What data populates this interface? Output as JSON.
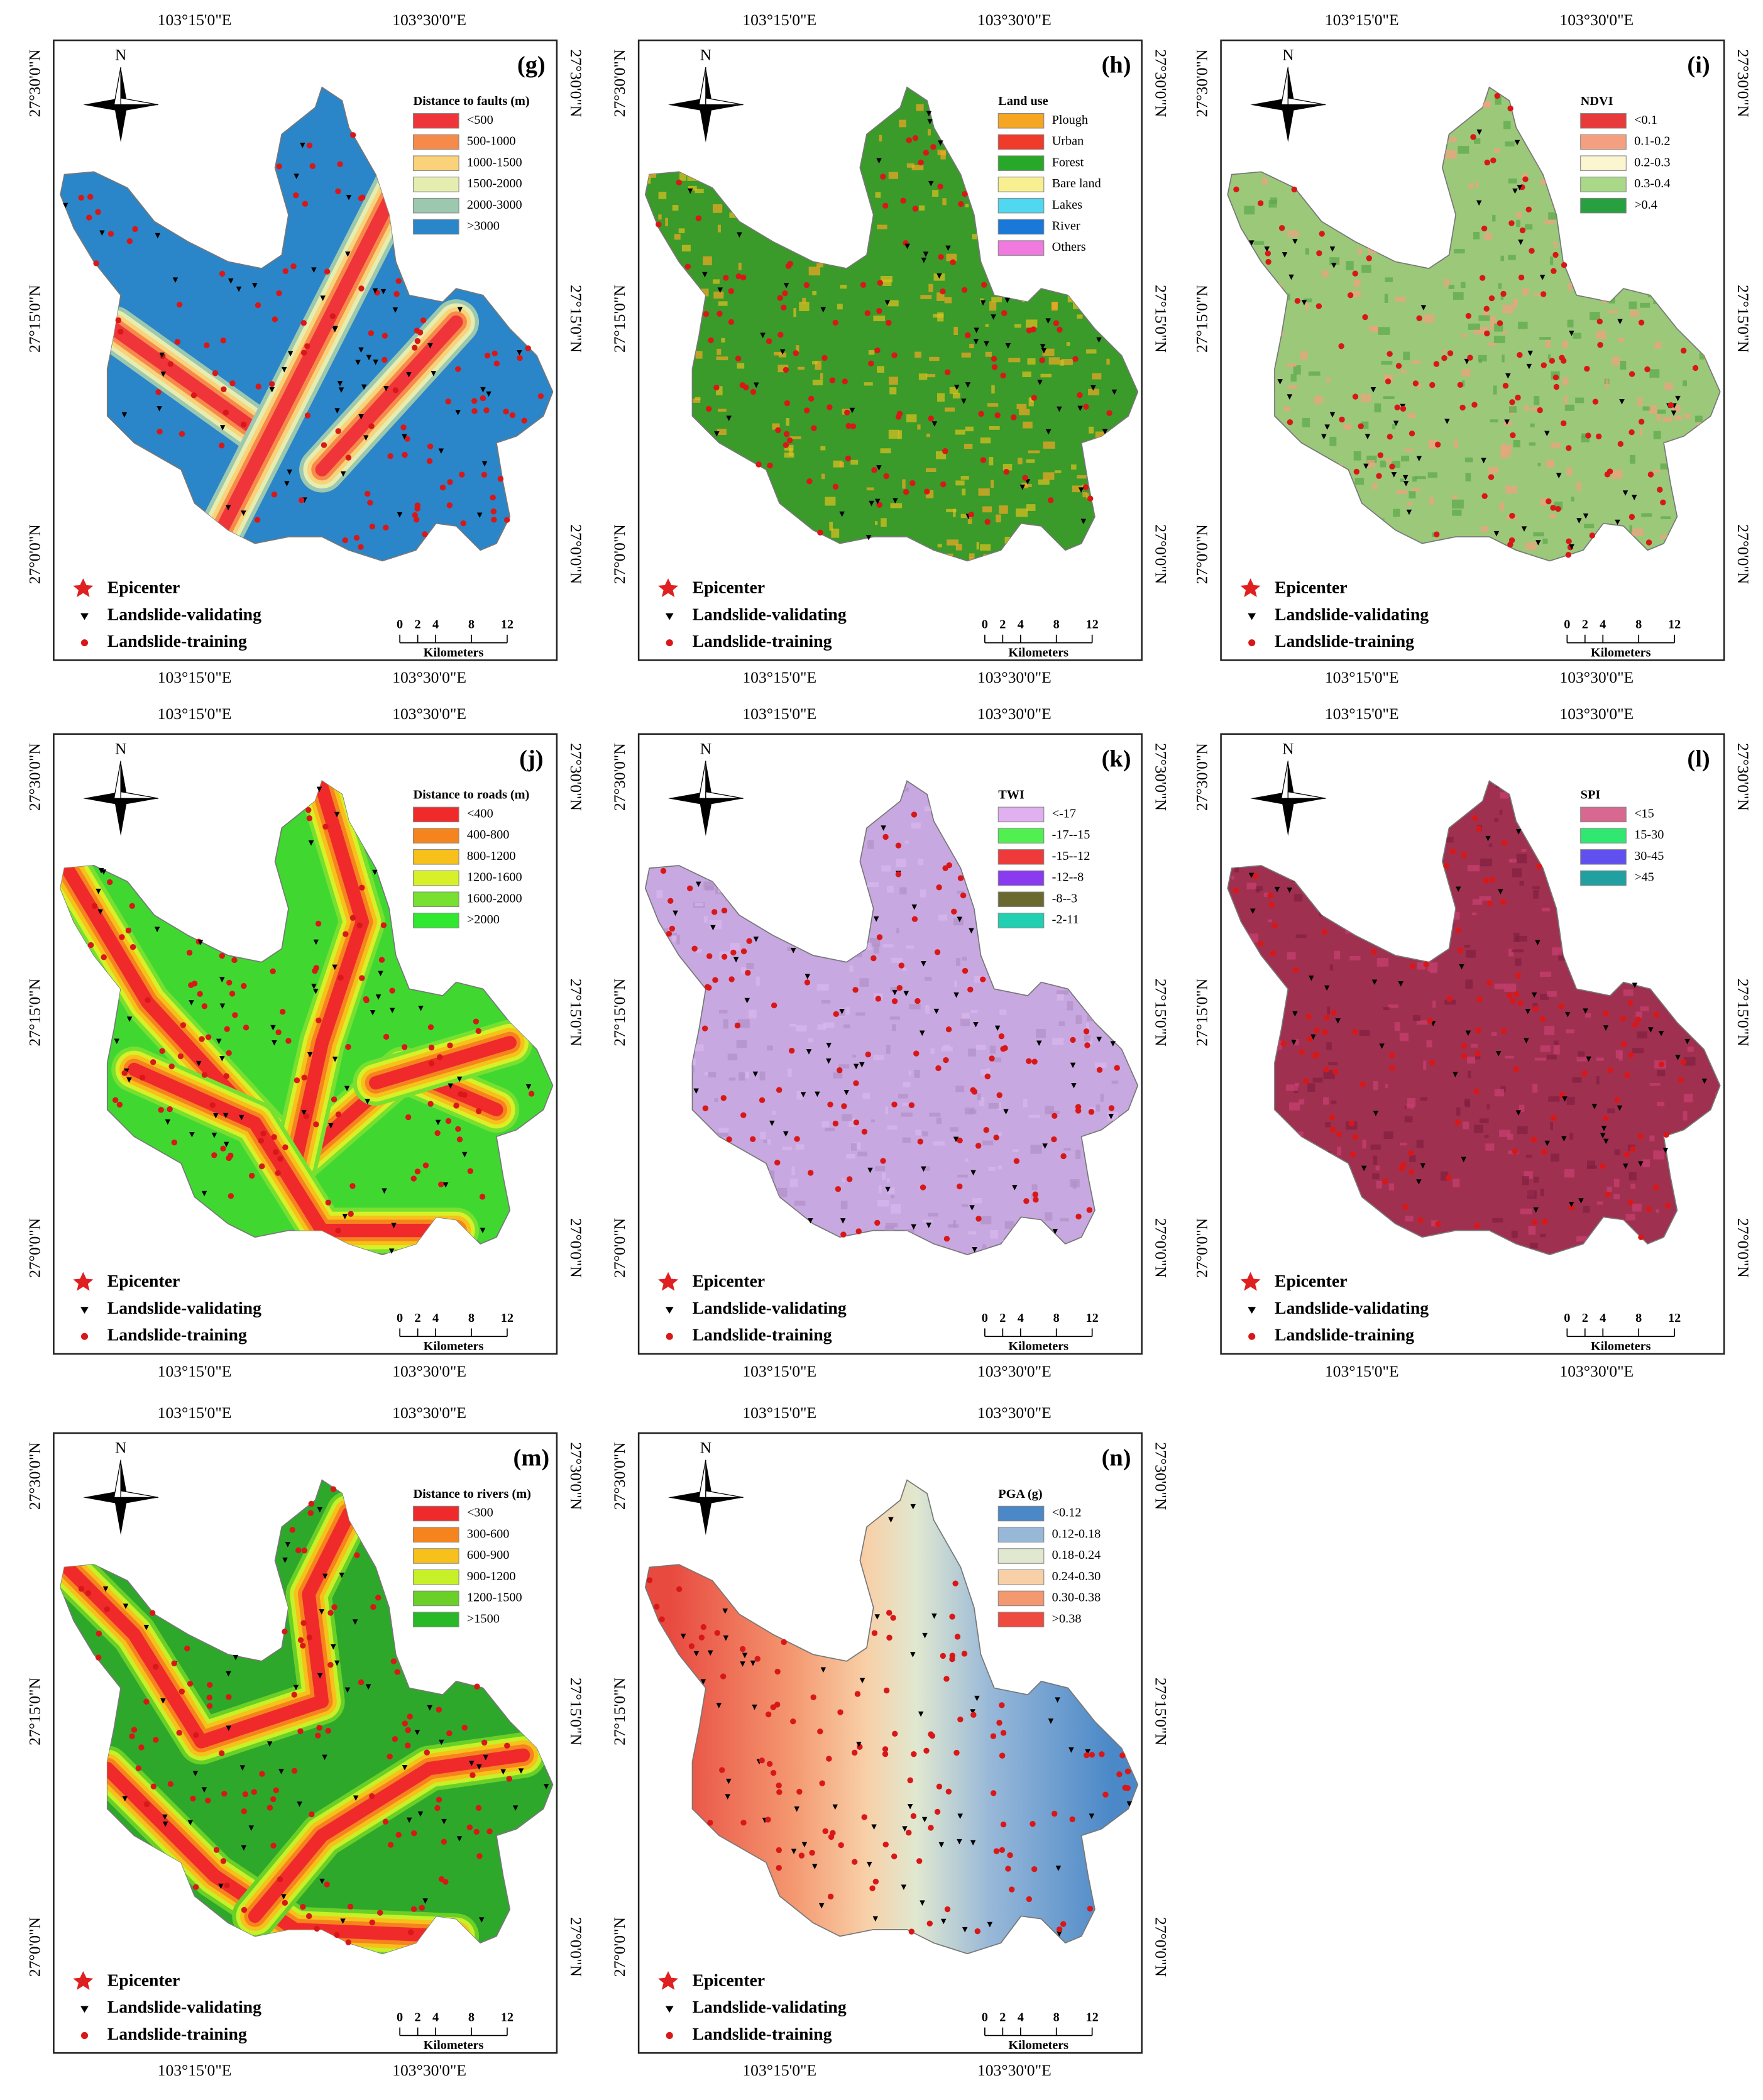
{
  "coordinates": {
    "lon": [
      "103°15'0\"E",
      "103°30'0\"E"
    ],
    "lat": [
      "27°30'0\"N",
      "27°15'0\"N",
      "27°0'0\"N"
    ]
  },
  "north": "N",
  "point_legend": {
    "epicenter": "Epicenter",
    "validating": "Landslide-validating",
    "training": "Landslide-training"
  },
  "scale_bar": {
    "ticks": [
      0,
      2,
      4,
      8,
      12
    ],
    "unit": "Kilometers"
  },
  "panels": [
    {
      "label": "(g)",
      "legend_title": "Distance to faults (m)",
      "items": [
        {
          "label": "<500",
          "color": "#f0353a"
        },
        {
          "label": "500-1000",
          "color": "#f58a4a"
        },
        {
          "label": "1000-1500",
          "color": "#f9d27a"
        },
        {
          "label": "1500-2000",
          "color": "#e6edb0"
        },
        {
          "label": "2000-3000",
          "color": "#9cc8b0"
        },
        {
          "label": ">3000",
          "color": "#2a86c8"
        }
      ]
    },
    {
      "label": "(h)",
      "legend_title": "Land use",
      "items": [
        {
          "label": "Plough",
          "color": "#f5a623"
        },
        {
          "label": "Urban",
          "color": "#f03a2a"
        },
        {
          "label": "Forest",
          "color": "#28a828"
        },
        {
          "label": "Bare land",
          "color": "#f8f090"
        },
        {
          "label": "Lakes",
          "color": "#50d8f0"
        },
        {
          "label": "River",
          "color": "#1a78d8"
        },
        {
          "label": "Others",
          "color": "#f07ae0"
        }
      ]
    },
    {
      "label": "(i)",
      "legend_title": "NDVI",
      "items": [
        {
          "label": "<0.1",
          "color": "#e83a3a"
        },
        {
          "label": "0.1-0.2",
          "color": "#f4a080"
        },
        {
          "label": "0.2-0.3",
          "color": "#fbf5d0"
        },
        {
          "label": "0.3-0.4",
          "color": "#a8d888"
        },
        {
          "label": ">0.4",
          "color": "#28a040"
        }
      ]
    },
    {
      "label": "(j)",
      "legend_title": "Distance to roads (m)",
      "items": [
        {
          "label": "<400",
          "color": "#f02a2a"
        },
        {
          "label": "400-800",
          "color": "#f5841e"
        },
        {
          "label": "800-1200",
          "color": "#f8c01a"
        },
        {
          "label": "1200-1600",
          "color": "#d8f028"
        },
        {
          "label": "1600-2000",
          "color": "#78e030"
        },
        {
          "label": ">2000",
          "color": "#30e830"
        }
      ]
    },
    {
      "label": "(k)",
      "legend_title": "TWI",
      "items": [
        {
          "label": "<-17",
          "color": "#e0b0f0"
        },
        {
          "label": "-17--15",
          "color": "#50f050"
        },
        {
          "label": "-15--12",
          "color": "#f03a3a"
        },
        {
          "label": "-12--8",
          "color": "#8a3af0"
        },
        {
          "label": "-8--3",
          "color": "#6a6a30"
        },
        {
          "label": "-2-11",
          "color": "#20d0b0"
        }
      ]
    },
    {
      "label": "(l)",
      "legend_title": "SPI",
      "items": [
        {
          "label": "<15",
          "color": "#d86890"
        },
        {
          "label": "15-30",
          "color": "#30e870"
        },
        {
          "label": "30-45",
          "color": "#6050f0"
        },
        {
          "label": ">45",
          "color": "#20a0a0"
        }
      ]
    },
    {
      "label": "(m)",
      "legend_title": "Distance to rivers (m)",
      "items": [
        {
          "label": "<300",
          "color": "#f02a2a"
        },
        {
          "label": "300-600",
          "color": "#f5841e"
        },
        {
          "label": "600-900",
          "color": "#f8c01a"
        },
        {
          "label": "900-1200",
          "color": "#c8f028"
        },
        {
          "label": "1200-1500",
          "color": "#6ad028"
        },
        {
          "label": ">1500",
          "color": "#28b828"
        }
      ]
    },
    {
      "label": "(n)",
      "legend_title": "PGA (g)",
      "items": [
        {
          "label": "<0.12",
          "color": "#4a88c8"
        },
        {
          "label": "0.12-0.18",
          "color": "#98b8d8"
        },
        {
          "label": "0.18-0.24",
          "color": "#e0e8d0"
        },
        {
          "label": "0.24-0.30",
          "color": "#f8d0a8"
        },
        {
          "label": "0.30-0.38",
          "color": "#f49870"
        },
        {
          "label": ">0.38",
          "color": "#ee4a40"
        }
      ]
    }
  ]
}
